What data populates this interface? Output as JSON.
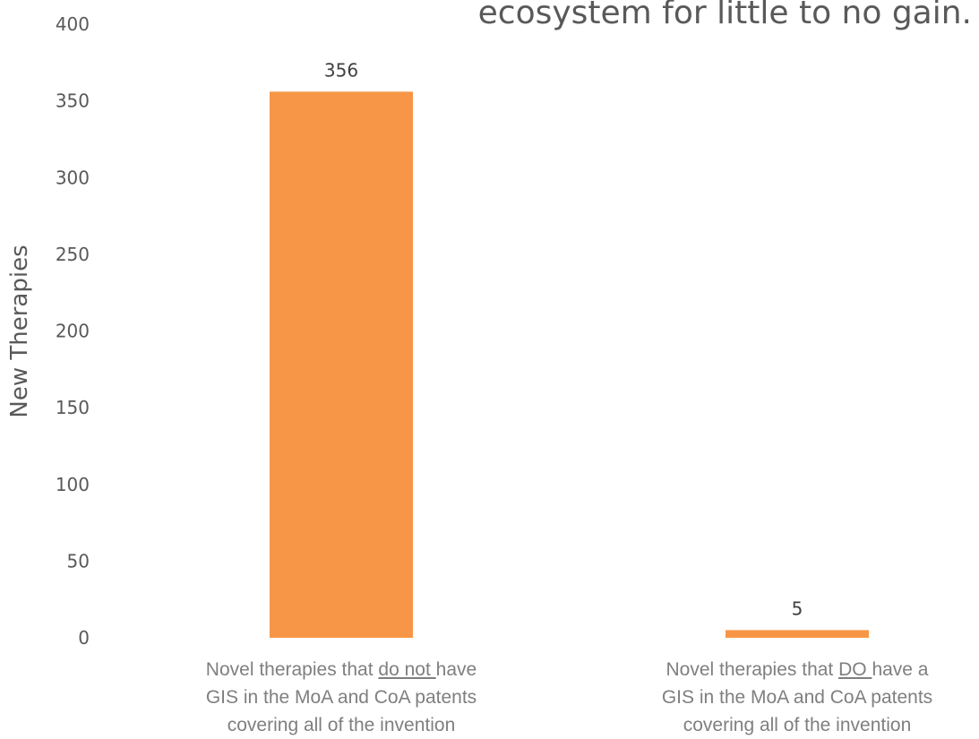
{
  "chart_data": {
    "type": "bar",
    "title_fragment": "ecosystem for little to no gain.",
    "ylabel": "New Therapies",
    "ylim": [
      0,
      400
    ],
    "yticks": [
      0,
      50,
      100,
      150,
      200,
      250,
      300,
      350,
      400
    ],
    "categories": [
      {
        "before": "Novel therapies that ",
        "emphasis": "do not ",
        "after": "have",
        "line2": "GIS in the MoA and CoA patents",
        "line3": "covering all of the invention"
      },
      {
        "before": "Novel therapies that ",
        "emphasis": "DO ",
        "after": "have a",
        "line2": "GIS in the MoA and CoA patents",
        "line3": "covering all of the invention"
      }
    ],
    "values": [
      356,
      5
    ],
    "data_labels": [
      "356",
      "5"
    ],
    "bar_color": "#F79646",
    "grid": false,
    "legend": "none"
  }
}
